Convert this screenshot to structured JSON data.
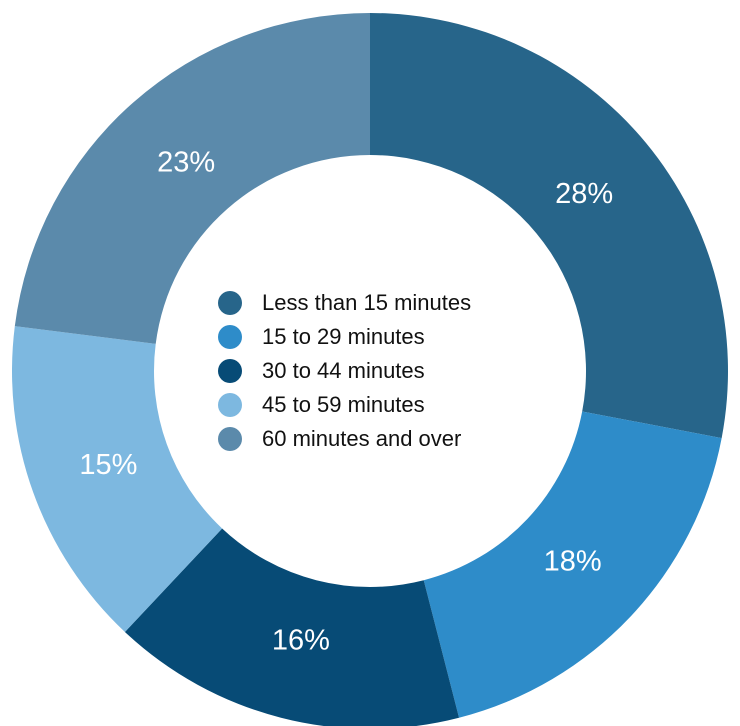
{
  "chart_data": {
    "type": "pie",
    "donut": true,
    "categories": [
      "Less than 15 minutes",
      "15 to 29 minutes",
      "30 to 44 minutes",
      "45 to 59 minutes",
      "60 minutes and over"
    ],
    "values": [
      28,
      18,
      16,
      15,
      23
    ],
    "data_labels": [
      "28%",
      "18%",
      "16%",
      "15%",
      "23%"
    ],
    "colors": [
      "#27658a",
      "#2e8cc9",
      "#074b76",
      "#7db8e0",
      "#5b8aab"
    ],
    "legend_position": "center",
    "start_angle": "12 o'clock",
    "direction": "clockwise"
  }
}
